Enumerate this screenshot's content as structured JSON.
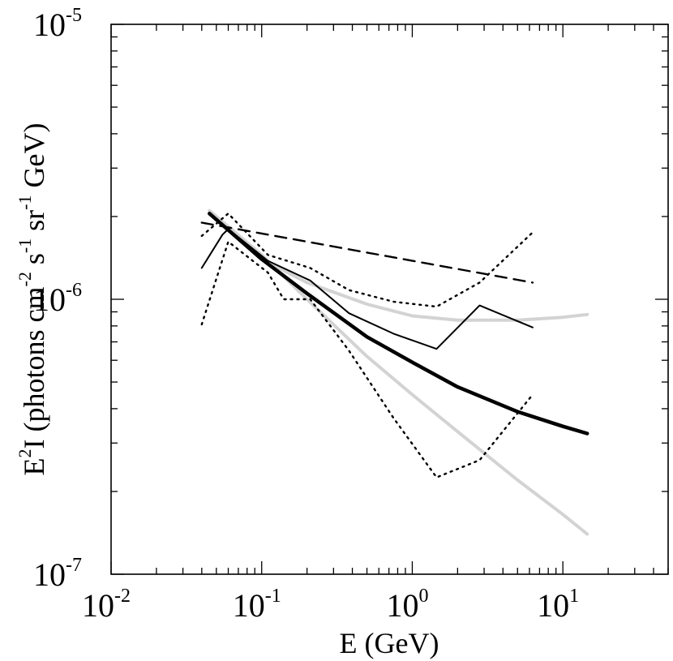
{
  "chart_data": {
    "type": "line",
    "title": "",
    "x_scale": "log",
    "y_scale": "log",
    "xlim": [
      0.01,
      50
    ],
    "ylim": [
      1e-07,
      1e-05
    ],
    "xlabel": {
      "text": "E (GeV)"
    },
    "ylabel": {
      "parts": [
        {
          "t": "E",
          "s": "n"
        },
        {
          "t": "2",
          "s": "sup"
        },
        {
          "t": "I (photons cm",
          "s": "n"
        },
        {
          "t": "-2",
          "s": "sup"
        },
        {
          "t": " s",
          "s": "n"
        },
        {
          "t": "-1",
          "s": "sup"
        },
        {
          "t": " sr",
          "s": "n"
        },
        {
          "t": "-1",
          "s": "sup"
        },
        {
          "t": " GeV)",
          "s": "n"
        }
      ]
    },
    "x_ticks": [
      {
        "value": 0.01,
        "base": "10",
        "exp": "-2"
      },
      {
        "value": 0.1,
        "base": "10",
        "exp": "-1"
      },
      {
        "value": 1,
        "base": "10",
        "exp": "0"
      },
      {
        "value": 10,
        "base": "10",
        "exp": "1"
      }
    ],
    "y_ticks": [
      {
        "value": 1e-07,
        "base": "10",
        "exp": "-7"
      },
      {
        "value": 1e-06,
        "base": "10",
        "exp": "-6"
      },
      {
        "value": 1e-05,
        "base": "10",
        "exp": "-5"
      }
    ],
    "series": [
      {
        "name": "gray-steep",
        "style": "solid",
        "color": "#d3d3d3",
        "width": 4,
        "x": [
          0.045,
          0.1,
          0.2,
          0.5,
          1,
          2,
          5,
          10,
          14.5
        ],
        "y": [
          2.1e-06,
          1.45e-06,
          1e-06,
          6.2e-07,
          4.5e-07,
          3.3e-07,
          2.2e-07,
          1.65e-07,
          1.4e-07
        ]
      },
      {
        "name": "gray-flat",
        "style": "solid",
        "color": "#d3d3d3",
        "width": 4,
        "x": [
          0.045,
          0.1,
          0.2,
          0.5,
          1,
          2,
          5,
          10,
          14.5
        ],
        "y": [
          2.1e-06,
          1.4e-06,
          1.15e-06,
          9.6e-07,
          8.7e-07,
          8.4e-07,
          8.4e-07,
          8.6e-07,
          8.8e-07
        ]
      },
      {
        "name": "black-thick",
        "style": "solid",
        "color": "#000000",
        "width": 4.5,
        "x": [
          0.045,
          0.1,
          0.2,
          0.5,
          1,
          2,
          5,
          10,
          14.5
        ],
        "y": [
          2.05e-06,
          1.4e-06,
          1.05e-06,
          7.3e-07,
          5.9e-07,
          4.8e-07,
          3.9e-07,
          3.45e-07,
          3.25e-07
        ]
      },
      {
        "name": "black-thin",
        "style": "solid",
        "color": "#000000",
        "width": 2,
        "x": [
          0.04,
          0.055,
          0.06,
          0.11,
          0.21,
          0.38,
          0.75,
          1.45,
          2.8,
          6.3
        ],
        "y": [
          1.3e-06,
          1.72e-06,
          1.8e-06,
          1.38e-06,
          1.17e-06,
          8.9e-07,
          7.5e-07,
          6.6e-07,
          9.5e-07,
          7.9e-07
        ]
      },
      {
        "name": "dashed",
        "style": "dashed",
        "color": "#000000",
        "width": 2.4,
        "x": [
          0.04,
          6.3
        ],
        "y": [
          1.9e-06,
          1.15e-06
        ]
      },
      {
        "name": "dotted-upper",
        "style": "dotted",
        "color": "#000000",
        "width": 2.4,
        "x": [
          0.04,
          0.06,
          0.11,
          0.21,
          0.38,
          0.75,
          1.45,
          2.8,
          6.3
        ],
        "y": [
          1.7e-06,
          2.05e-06,
          1.45e-06,
          1.3e-06,
          1.08e-06,
          9.8e-07,
          9.4e-07,
          1.15e-06,
          1.75e-06
        ]
      },
      {
        "name": "dotted-lower",
        "style": "dotted",
        "color": "#000000",
        "width": 2.4,
        "x": [
          0.04,
          0.06,
          0.11,
          0.14,
          0.21,
          0.38,
          0.75,
          1.45,
          2.8,
          6.3
        ],
        "y": [
          8.1e-07,
          1.62e-06,
          1.25e-06,
          1e-06,
          1e-06,
          6.5e-07,
          3.7e-07,
          2.25e-07,
          2.6e-07,
          4.5e-07
        ]
      }
    ]
  }
}
